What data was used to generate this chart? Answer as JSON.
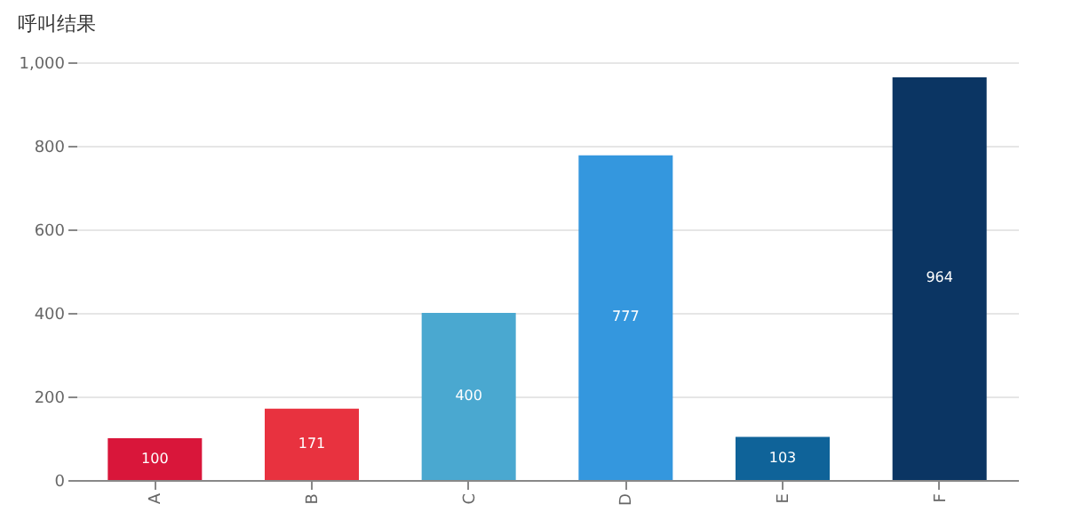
{
  "chart_data": {
    "type": "bar",
    "title": "呼叫结果",
    "categories": [
      "A",
      "B",
      "C",
      "D",
      "E",
      "F"
    ],
    "values": [
      100,
      171,
      400,
      777,
      103,
      964
    ],
    "colors": [
      "#d9163a",
      "#e8323f",
      "#4aa8d0",
      "#3497de",
      "#0f6399",
      "#0b3563"
    ],
    "ylim": [
      0,
      1000
    ],
    "yticks": [
      0,
      200,
      400,
      600,
      800,
      {
        "value": 1000,
        "label": "1,000"
      }
    ],
    "grid": "y",
    "data_labels": true
  }
}
